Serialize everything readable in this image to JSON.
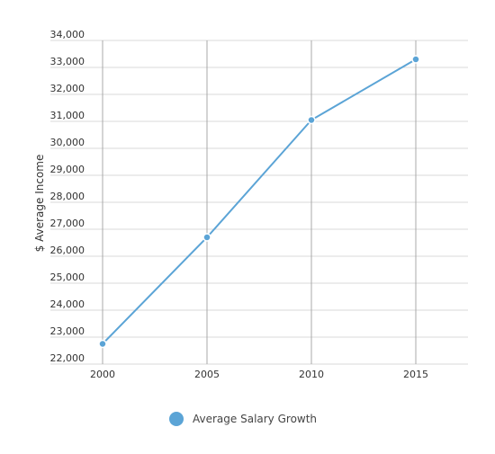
{
  "chart_data": {
    "type": "line",
    "x": [
      2000,
      2005,
      2010,
      2015
    ],
    "series": [
      {
        "name": "Average Salary Growth",
        "values": [
          22750,
          26700,
          31050,
          33300
        ]
      }
    ],
    "ylabel": "$ Average Income",
    "xlabel": "",
    "ylim": [
      22000,
      34000
    ],
    "xlim": [
      1997.5,
      2017.5
    ],
    "y_ticks": [
      "22,000",
      "23,000",
      "24,000",
      "25,000",
      "26,000",
      "27,000",
      "28,000",
      "29,000",
      "30,000",
      "31,000",
      "32,000",
      "33,000",
      "34,000"
    ],
    "x_ticks": [
      "2000",
      "2005",
      "2010",
      "2015"
    ],
    "grid": true,
    "legend_position": "bottom",
    "color": "#5ba4d6"
  }
}
